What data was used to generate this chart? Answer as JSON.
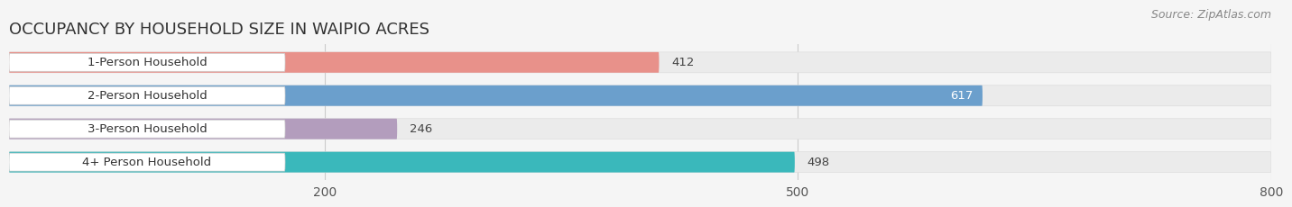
{
  "title": "OCCUPANCY BY HOUSEHOLD SIZE IN WAIPIO ACRES",
  "source": "Source: ZipAtlas.com",
  "categories": [
    "1-Person Household",
    "2-Person Household",
    "3-Person Household",
    "4+ Person Household"
  ],
  "values": [
    412,
    617,
    246,
    498
  ],
  "bar_colors": [
    "#e8918a",
    "#6b9fcc",
    "#b39dbd",
    "#3ab8bb"
  ],
  "value_inside": [
    false,
    true,
    false,
    false
  ],
  "xlim": [
    0,
    800
  ],
  "xticks": [
    200,
    500,
    800
  ],
  "bg_color": "#f5f5f5",
  "bar_bg_color": "#ebebeb",
  "label_bg_color": "#ffffff",
  "title_fontsize": 13,
  "source_fontsize": 9,
  "tick_fontsize": 10,
  "cat_fontsize": 9.5,
  "val_fontsize": 9.5
}
